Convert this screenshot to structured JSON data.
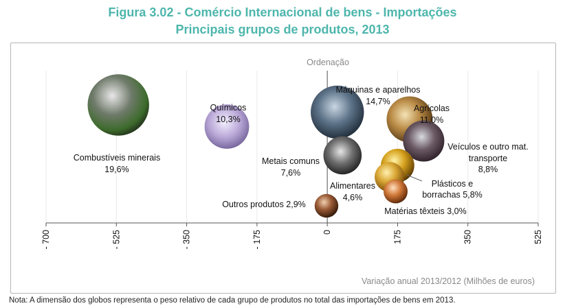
{
  "title_line1": "Figura 3.02 - Comércio Internacional de bens - Importações",
  "title_line2": "Principais grupos de produtos, 2013",
  "note": "Nota: A dimensão dos globos representa o peso relativo de cada grupo de produtos no total das importações de bens em 2013.",
  "colors": {
    "title": "#4db6ac",
    "axis": "#555555",
    "text": "#111111",
    "muted": "#888888"
  },
  "chart_data": {
    "type": "bubble",
    "title": "Figura 3.02 - Comércio Internacional de bens - Importações — Principais grupos de produtos, 2013",
    "xlabel": "Variação anual 2013/2012 (Milhões de euros)",
    "ylabel": "Ordenação",
    "xlim": [
      -700,
      525
    ],
    "xticks": [
      -700,
      -525,
      -350,
      -175,
      0,
      175,
      350,
      525
    ],
    "xtick_labels": [
      "- 700",
      "- 525",
      "- 350",
      "- 175",
      "0",
      "175",
      "350",
      "525"
    ],
    "size_meaning": "peso relativo do grupo no total das importações (%)",
    "series": [
      {
        "name": "Combustíveis minerais",
        "share_label": "19,6%",
        "share": 19.6,
        "x": -520,
        "rank": 8
      },
      {
        "name": "Químicos",
        "share_label": "10,3%",
        "share": 10.3,
        "x": -250,
        "rank": 6.5
      },
      {
        "name": "Máquinas e aparelhos",
        "share_label": "14,7%",
        "share": 14.7,
        "x": 25,
        "rank": 7.5
      },
      {
        "name": "Agrícolas",
        "share_label": "11,0%",
        "share": 11.0,
        "x": 205,
        "rank": 7
      },
      {
        "name": "Veículos e outro mat. transporte",
        "share_label": "8,8%",
        "share": 8.8,
        "x": 240,
        "rank": 5.5
      },
      {
        "name": "Metais comuns",
        "share_label": "7,6%",
        "share": 7.6,
        "x": 38,
        "rank": 4.5
      },
      {
        "name": "Plásticos e borrachas",
        "share_label": "5,8%",
        "share": 5.8,
        "x": 175,
        "rank": 3.8
      },
      {
        "name": "Alimentares",
        "share_label": "4,6%",
        "share": 4.6,
        "x": 155,
        "rank": 3
      },
      {
        "name": "Matérias têxteis",
        "share_label": "3,0%",
        "share": 3.0,
        "x": 170,
        "rank": 2
      },
      {
        "name": "Outros produtos",
        "share_label": "2,9%",
        "share": 2.9,
        "x": -2,
        "rank": 1
      }
    ],
    "labels": {
      "combustiveis_name": "Combustíveis minerais",
      "combustiveis_value": "19,6%",
      "quimicos_name": "Químicos",
      "quimicos_value": "10,3%",
      "maquinas_name": "Máquinas e aparelhos",
      "maquinas_value": "14,7%",
      "agricolas_name": "Agrícolas",
      "agricolas_value": "11,0%",
      "veiculos_line1": "Veículos e outro mat.",
      "veiculos_line2": "transporte",
      "veiculos_value": "8,8%",
      "metais_name": "Metais comuns",
      "metais_value": "7,6%",
      "plasticos_line1": "Plásticos e",
      "plasticos_line2": "borrachas 5,8%",
      "alimentares_name": "Alimentares",
      "alimentares_value": "4,6%",
      "texteis_text": "Matérias têxteis 3,0%",
      "outros_text": "Outros produtos 2,9%"
    }
  }
}
